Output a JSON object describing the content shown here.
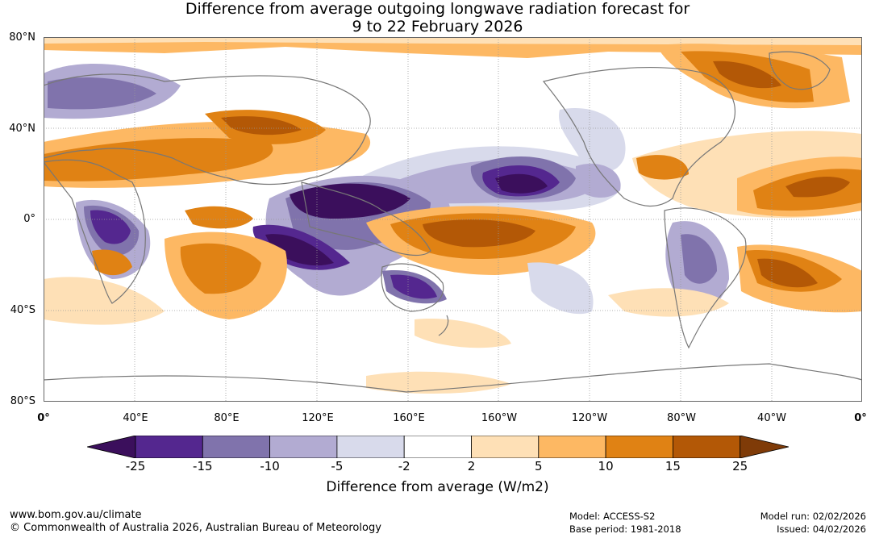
{
  "title_line1": "Difference from average outgoing longwave radiation forecast for",
  "title_line2": "9 to 22 February 2026",
  "map": {
    "lat_labels": [
      "80°N",
      "40°N",
      "0°",
      "40°S",
      "80°S"
    ],
    "lon_labels": [
      "0°",
      "40°E",
      "80°E",
      "120°E",
      "160°E",
      "160°W",
      "120°W",
      "80°W",
      "40°W",
      "0°"
    ]
  },
  "colorbar": {
    "title": "Difference from average (W/m2)",
    "tick_labels": [
      "-25",
      "-15",
      "-10",
      "-5",
      "-2",
      "2",
      "5",
      "10",
      "15",
      "25"
    ],
    "colors": [
      "#3b0f5c",
      "#54278f",
      "#8073ac",
      "#b2abd2",
      "#d8daeb",
      "#ffffff",
      "#fee0b6",
      "#fdb863",
      "#e08214",
      "#b35806",
      "#7f3b08"
    ]
  },
  "footer": {
    "website": "www.bom.gov.au/climate",
    "copyright": "© Commonwealth of Australia 2026, Australian Bureau of Meteorology",
    "model": "Model: ACCESS-S2",
    "base_period": "Base period: 1981-2018",
    "model_run": "Model run: 02/02/2026",
    "issued": "Issued: 04/02/2026"
  }
}
